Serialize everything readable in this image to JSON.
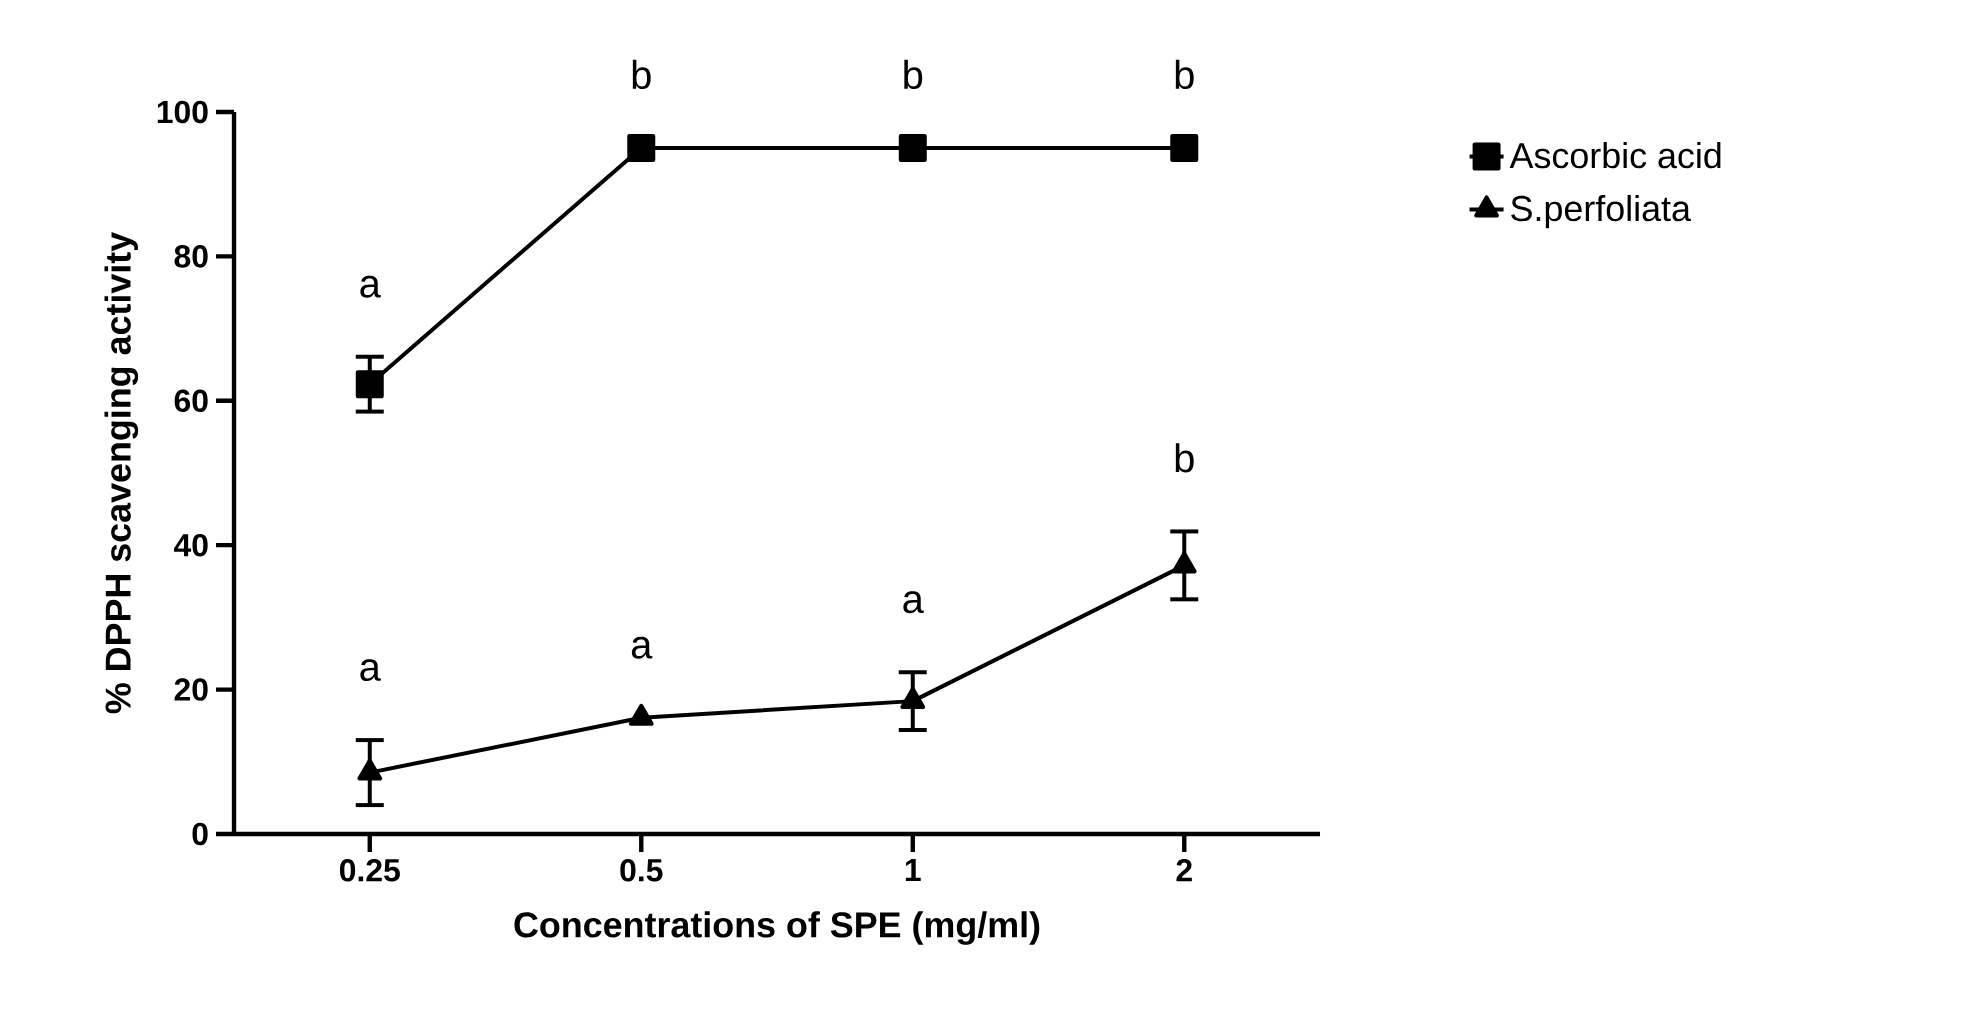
{
  "chart_data": {
    "type": "line",
    "xlabel": "Concentrations of SPE (mg/ml)",
    "ylabel": "% DPPH scavenging activity",
    "categories": [
      "0.25",
      "0.5",
      "1",
      "2"
    ],
    "series": [
      {
        "name": "Ascorbic acid",
        "color": "#000000",
        "marker": "square",
        "values": [
          62.3,
          95,
          95,
          95
        ],
        "errors": [
          3.8,
          null,
          null,
          null
        ]
      },
      {
        "name": "S.perfoliata",
        "color": "#000000",
        "marker": "triangle",
        "values": [
          8.5,
          16.1,
          18.4,
          37.2
        ],
        "errors": [
          4.5,
          null,
          4,
          4.7
        ]
      }
    ],
    "ylim": [
      0,
      100
    ],
    "yticks": [
      0,
      20,
      40,
      60,
      80,
      100
    ],
    "legend": "top right",
    "annotations": [
      "a",
      "b",
      "b",
      "b",
      "a",
      "a",
      "a",
      "b"
    ]
  }
}
